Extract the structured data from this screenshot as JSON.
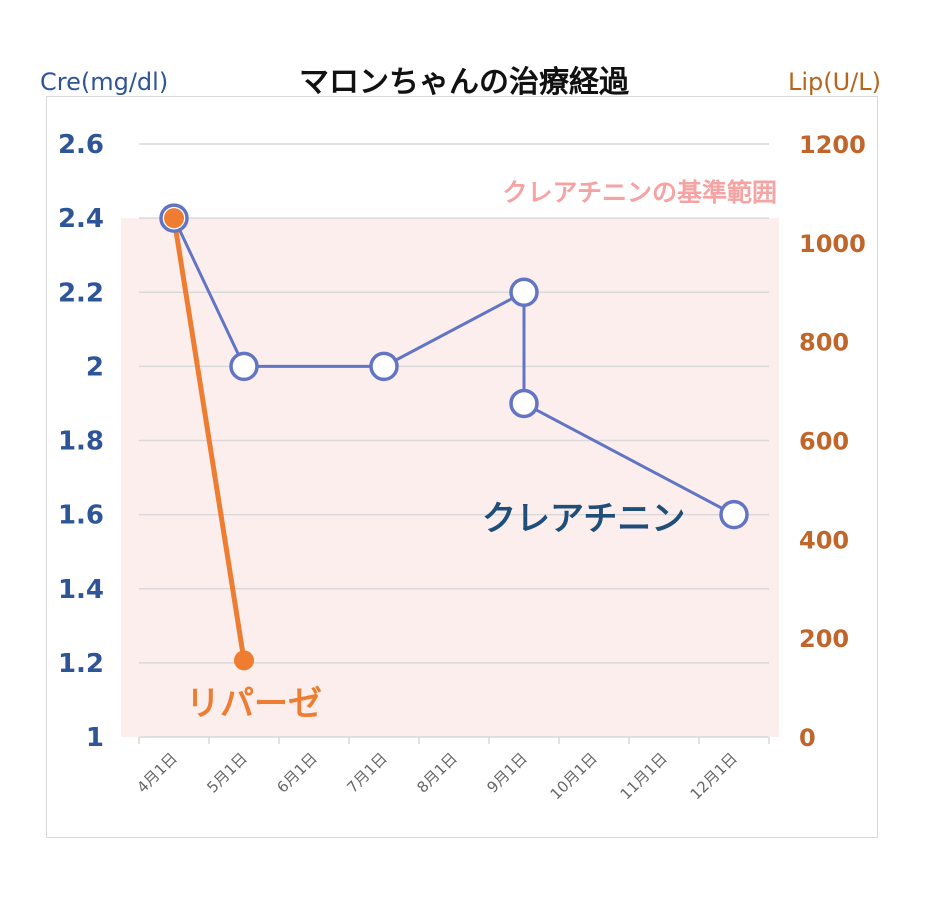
{
  "chart_data": {
    "type": "line",
    "title": "マロンちゃんの治療経過",
    "y_left_label": "Cre(mg/dl)",
    "y_right_label": "Lip(U/L)",
    "x_ticks": [
      "4月1日",
      "5月1日",
      "6月1日",
      "7月1日",
      "8月1日",
      "9月1日",
      "10月1日",
      "11月1日",
      "12月1日"
    ],
    "y_left_ticks": [
      "2.6",
      "2.4",
      "2.2",
      "2",
      "1.8",
      "1.6",
      "1.4",
      "1.2",
      "1"
    ],
    "y_right_ticks": [
      "1200",
      "1000",
      "800",
      "600",
      "400",
      "200",
      "0"
    ],
    "ylim_left": [
      1,
      2.6
    ],
    "ylim_right": [
      0,
      1200
    ],
    "reference_band": {
      "label": "クレアチニンの基準範囲",
      "axis": "left",
      "range": [
        1.0,
        2.4
      ],
      "color": "#fdeeee"
    },
    "grid": true,
    "series": [
      {
        "name": "クレアチニン",
        "axis": "left",
        "color": "#6274c4",
        "marker": "open-circle",
        "points": [
          {
            "x": "4/15",
            "xi": 0.5,
            "y": 2.4
          },
          {
            "x": "5/15",
            "xi": 1.5,
            "y": 2.0
          },
          {
            "x": "7/15",
            "xi": 3.5,
            "y": 2.0
          },
          {
            "x": "9/15",
            "xi": 5.5,
            "y": 2.2
          },
          {
            "x": "9/15",
            "xi": 5.5,
            "y": 1.9
          },
          {
            "x": "12/15",
            "xi": 8.5,
            "y": 1.6
          }
        ]
      },
      {
        "name": "リパーゼ",
        "axis": "right",
        "color": "#ee7d31",
        "marker": "filled-circle",
        "points": [
          {
            "x": "4/15",
            "xi": 0.5,
            "y": 1050
          },
          {
            "x": "5/15",
            "xi": 1.5,
            "y": 155
          }
        ]
      }
    ]
  }
}
